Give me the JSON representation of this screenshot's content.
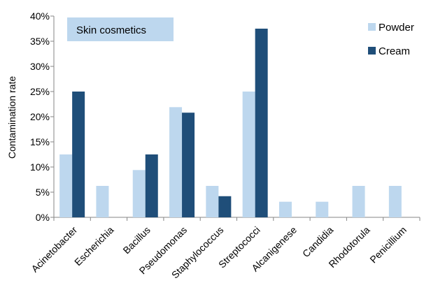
{
  "chart_data": {
    "type": "bar",
    "title": "Skin cosmetics",
    "xlabel": "",
    "ylabel": "Contamination rate",
    "ylim": [
      0,
      0.4
    ],
    "yticks": [
      "0%",
      "5%",
      "10%",
      "15%",
      "20%",
      "25%",
      "30%",
      "35%",
      "40%"
    ],
    "categories": [
      "Acinetobacter",
      "Escherichia",
      "Bacillus",
      "Pseudomonas",
      "Staphylococcus",
      "Streptococci",
      "Alcanigenese",
      "Candidia",
      "Rhodotorula",
      "Penicillium"
    ],
    "series": [
      {
        "name": "Powder",
        "color": "#bdd7ee",
        "values": [
          0.125,
          0.0625,
          0.094,
          0.219,
          0.0625,
          0.25,
          0.031,
          0.031,
          0.0625,
          0.0625
        ]
      },
      {
        "name": "Cream",
        "color": "#1f4e79",
        "values": [
          0.25,
          0,
          0.125,
          0.208,
          0.042,
          0.375,
          0,
          0,
          0,
          0
        ]
      }
    ],
    "grid": false,
    "legend": "top-right"
  }
}
